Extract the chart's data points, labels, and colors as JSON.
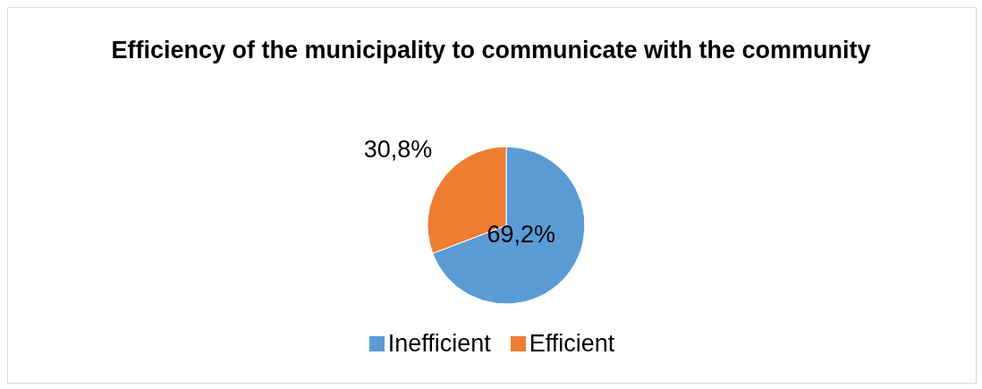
{
  "chart_data": {
    "type": "pie",
    "title": "Efficiency of the municipality to communicate with the community",
    "categories": [
      "Inefficient",
      "Efficient"
    ],
    "values": [
      69.2,
      30.8
    ],
    "colors": [
      "#5b9bd5",
      "#ed7d31"
    ],
    "value_labels": [
      "69,2%",
      "30,8%"
    ],
    "legend": "bottom"
  }
}
